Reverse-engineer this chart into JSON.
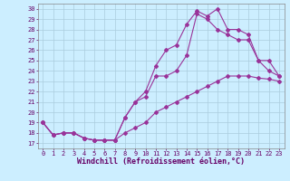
{
  "xlabel": "Windchill (Refroidissement éolien,°C)",
  "bg_color": "#cceeff",
  "line_color": "#993399",
  "xlim": [
    -0.5,
    23.5
  ],
  "ylim": [
    16.5,
    30.5
  ],
  "xticks": [
    0,
    1,
    2,
    3,
    4,
    5,
    6,
    7,
    8,
    9,
    10,
    11,
    12,
    13,
    14,
    15,
    16,
    17,
    18,
    19,
    20,
    21,
    22,
    23
  ],
  "yticks": [
    17,
    18,
    19,
    20,
    21,
    22,
    23,
    24,
    25,
    26,
    27,
    28,
    29,
    30
  ],
  "line1_x": [
    0,
    1,
    2,
    3,
    4,
    5,
    6,
    7,
    8,
    9,
    10,
    11,
    12,
    13,
    14,
    15,
    16,
    17,
    18,
    19,
    20,
    21,
    22,
    23
  ],
  "line1_y": [
    19,
    17.8,
    18,
    18,
    17.5,
    17.3,
    17.3,
    17.3,
    18,
    18.5,
    19,
    20,
    20.5,
    21,
    21.5,
    22,
    22.5,
    23,
    23.5,
    23.5,
    23.5,
    23.3,
    23.2,
    23
  ],
  "line2_x": [
    0,
    1,
    2,
    3,
    4,
    5,
    6,
    7,
    8,
    9,
    10,
    11,
    12,
    13,
    14,
    15,
    16,
    17,
    18,
    19,
    20,
    21,
    22,
    23
  ],
  "line2_y": [
    19,
    17.8,
    18,
    18,
    17.5,
    17.3,
    17.3,
    17.3,
    19.5,
    21,
    21.5,
    23.5,
    23.5,
    24,
    25.5,
    29.5,
    29.0,
    28,
    27.5,
    27,
    27,
    25,
    24,
    23.5
  ],
  "line3_x": [
    0,
    1,
    2,
    3,
    4,
    5,
    6,
    7,
    8,
    9,
    10,
    11,
    12,
    13,
    14,
    15,
    16,
    17,
    18,
    19,
    20,
    21,
    22,
    23
  ],
  "line3_y": [
    19,
    17.8,
    18,
    18,
    17.5,
    17.3,
    17.3,
    17.3,
    19.5,
    21,
    22,
    24.5,
    26,
    26.5,
    28.5,
    29.8,
    29.3,
    30,
    28,
    28,
    27.5,
    25,
    25,
    23.5
  ],
  "marker": "D",
  "markersize": 2.0,
  "linewidth": 0.8,
  "tick_fontsize": 5.0,
  "xlabel_fontsize": 6.0,
  "grid_color": "#aaccdd"
}
